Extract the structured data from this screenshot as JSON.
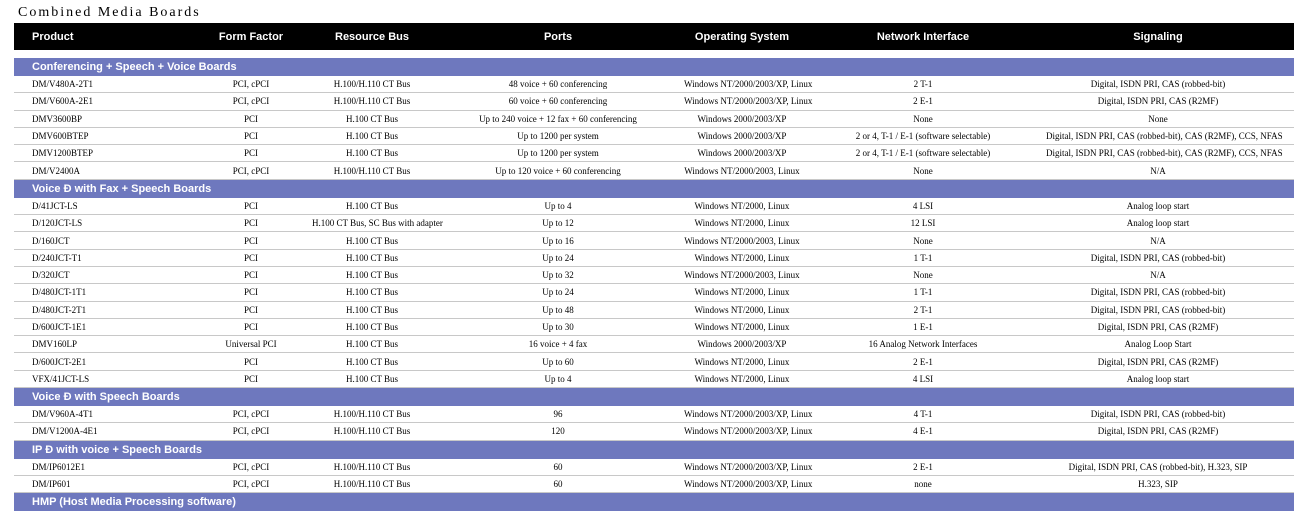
{
  "title": "Combined Media Boards",
  "table": {
    "header": [
      "Product",
      "Form Factor",
      "Resource Bus",
      "Ports",
      "Operating System",
      "Network Interface",
      "Signaling"
    ],
    "sections": [
      {
        "title": "Conferencing + Speech + Voice Boards",
        "rows": [
          [
            "DM/V480A-2T1",
            "PCI, cPCI",
            "H.100/H.110 CT Bus",
            "48 voice + 60 conferencing",
            "Windows NT/2000/2003/XP, Linux",
            "2 T-1",
            "Digital, ISDN PRI, CAS (robbed-bit)"
          ],
          [
            "DM/V600A-2E1",
            "PCI, cPCI",
            "H.100/H.110 CT Bus",
            "60 voice + 60 conferencing",
            "Windows NT/2000/2003/XP, Linux",
            "2 E-1",
            "Digital, ISDN PRI, CAS (R2MF)"
          ],
          [
            "DMV3600BP",
            "PCI",
            "H.100 CT Bus",
            "Up to 240 voice + 12 fax + 60 conferencing",
            "Windows 2000/2003/XP",
            "None",
            "None"
          ],
          [
            "DMV600BTEP",
            "PCI",
            "H.100 CT Bus",
            "Up to 1200 per system",
            "Windows 2000/2003/XP",
            "2 or 4, T-1 / E-1 (software selectable)",
            "Digital, ISDN PRI, CAS (robbed-bit), CAS (R2MF), CCS, NFAS"
          ],
          [
            "DMV1200BTEP",
            "PCI",
            "H.100 CT Bus",
            "Up to 1200 per system",
            "Windows 2000/2003/XP",
            "2 or 4, T-1 / E-1 (software selectable)",
            "Digital, ISDN PRI, CAS (robbed-bit), CAS (R2MF), CCS, NFAS"
          ],
          [
            "DM/V2400A",
            "PCI, cPCI",
            "H.100/H.110 CT Bus",
            "Up to 120 voice + 60 conferencing",
            "Windows NT/2000/2003, Linux",
            "None",
            "N/A"
          ]
        ]
      },
      {
        "title": "Voice Ð with Fax + Speech Boards",
        "rows": [
          [
            "D/41JCT-LS",
            "PCI",
            "H.100 CT Bus",
            "Up to 4",
            "Windows NT/2000, Linux",
            "4 LSI",
            "Analog loop start"
          ],
          [
            "D/120JCT-LS",
            "PCI",
            "H.100 CT Bus, SC Bus with adapter",
            "Up to 12",
            "Windows NT/2000, Linux",
            "12 LSI",
            "Analog loop start"
          ],
          [
            "D/160JCT",
            "PCI",
            "H.100 CT Bus",
            "Up to 16",
            "Windows NT/2000/2003, Linux",
            "None",
            "N/A"
          ],
          [
            "D/240JCT-T1",
            "PCI",
            "H.100 CT Bus",
            "Up to 24",
            "Windows NT/2000, Linux",
            "1 T-1",
            "Digital, ISDN PRI, CAS (robbed-bit)"
          ],
          [
            "D/320JCT",
            "PCI",
            "H.100 CT Bus",
            "Up to 32",
            "Windows NT/2000/2003, Linux",
            "None",
            "N/A"
          ],
          [
            "D/480JCT-1T1",
            "PCI",
            "H.100 CT Bus",
            "Up to 24",
            "Windows NT/2000, Linux",
            "1 T-1",
            "Digital, ISDN PRI, CAS (robbed-bit)"
          ],
          [
            "D/480JCT-2T1",
            "PCI",
            "H.100 CT Bus",
            "Up to 48",
            "Windows NT/2000, Linux",
            "2 T-1",
            "Digital, ISDN PRI, CAS (robbed-bit)"
          ],
          [
            "D/600JCT-1E1",
            "PCI",
            "H.100 CT Bus",
            "Up to 30",
            "Windows NT/2000, Linux",
            "1 E-1",
            "Digital, ISDN PRI, CAS (R2MF)"
          ],
          [
            "DMV160LP",
            "Universal PCI",
            "H.100 CT Bus",
            "16 voice + 4 fax",
            "Windows 2000/2003/XP",
            "16 Analog Network Interfaces",
            "Analog Loop Start"
          ],
          [
            "D/600JCT-2E1",
            "PCI",
            "H.100 CT Bus",
            "Up to 60",
            "Windows NT/2000, Linux",
            "2 E-1",
            "Digital, ISDN PRI, CAS (R2MF)"
          ],
          [
            "VFX/41JCT-LS",
            "PCI",
            "H.100 CT Bus",
            "Up to 4",
            "Windows NT/2000, Linux",
            "4 LSI",
            "Analog loop start"
          ]
        ]
      },
      {
        "title": "Voice Ð with Speech Boards",
        "rows": [
          [
            "DM/V960A-4T1",
            "PCI, cPCI",
            "H.100/H.110 CT Bus",
            "96",
            "Windows NT/2000/2003/XP, Linux",
            "4 T-1",
            "Digital, ISDN PRI, CAS (robbed-bit)"
          ],
          [
            "DM/V1200A-4E1",
            "PCI, cPCI",
            "H.100/H.110 CT Bus",
            "120",
            "Windows NT/2000/2003/XP, Linux",
            "4 E-1",
            "Digital, ISDN PRI, CAS (R2MF)"
          ]
        ]
      },
      {
        "title": "IP Ð with voice + Speech Boards",
        "rows": [
          [
            "DM/IP6012E1",
            "PCI, cPCI",
            "H.100/H.110 CT Bus",
            "60",
            "Windows NT/2000/2003/XP, Linux",
            "2 E-1",
            "Digital, ISDN PRI, CAS (robbed-bit), H.323, SIP"
          ],
          [
            "DM/IP601",
            "PCI, cPCI",
            "H.100/H.110 CT Bus",
            "60",
            "Windows NT/2000/2003/XP, Linux",
            "none",
            "H.323, SIP"
          ]
        ]
      },
      {
        "title": "HMP (Host Media Processing software)",
        "rows": []
      }
    ]
  }
}
